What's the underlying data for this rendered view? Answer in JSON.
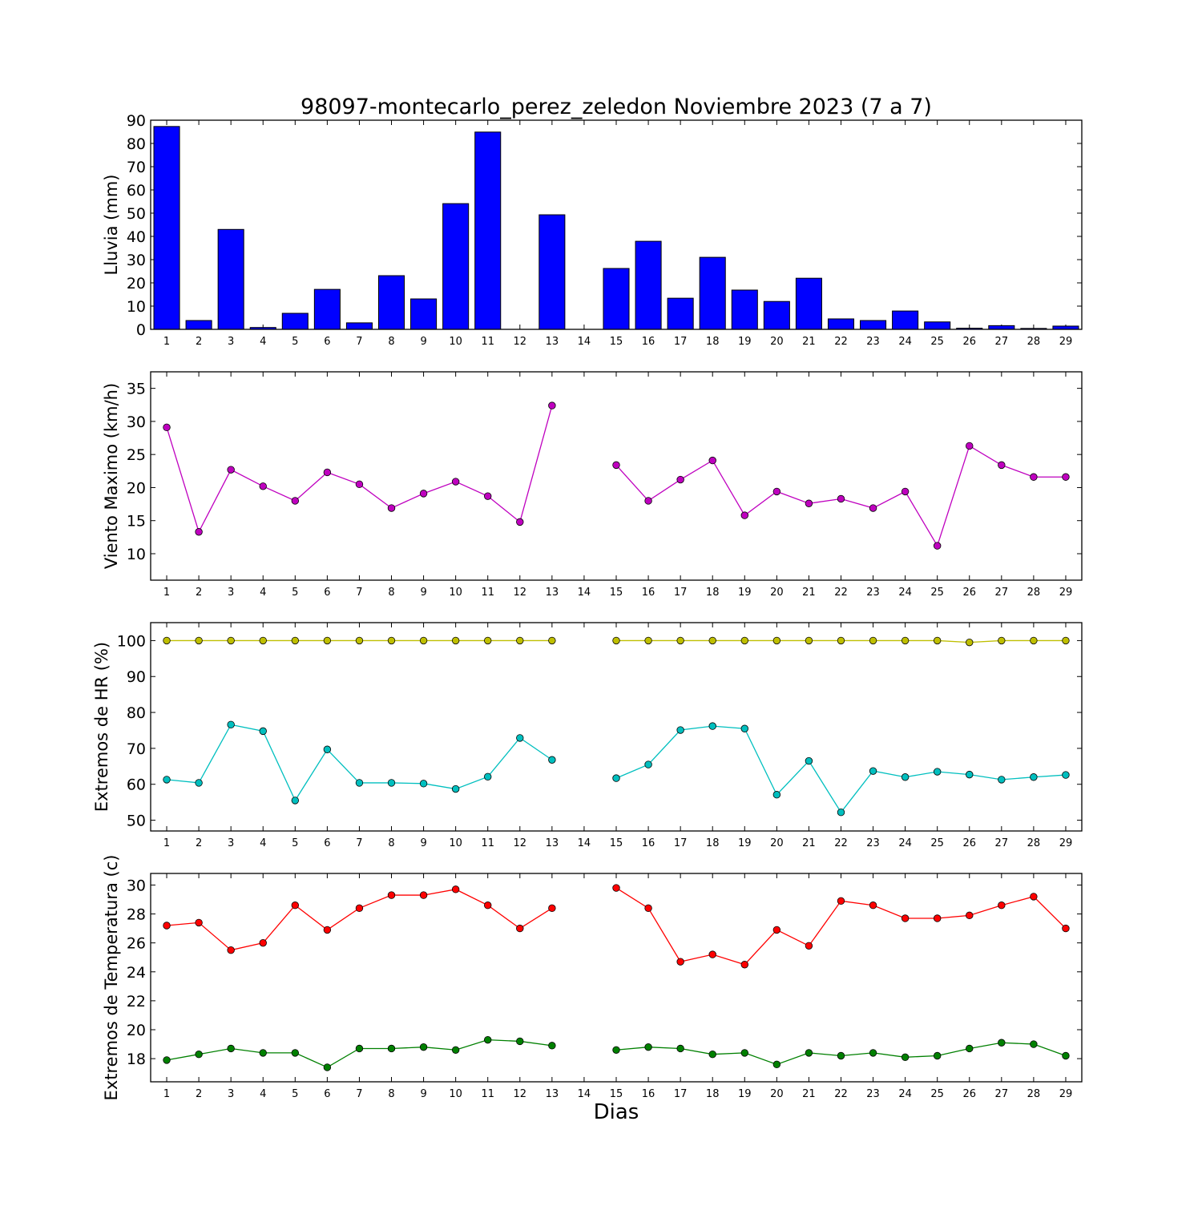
{
  "chart_data": {
    "title": "98097-montecarlo_perez_zeledon Noviembre 2023  (7 a 7)",
    "xlabel": "Dias",
    "days": [
      1,
      2,
      3,
      4,
      5,
      6,
      7,
      8,
      9,
      10,
      11,
      12,
      13,
      14,
      15,
      16,
      17,
      18,
      19,
      20,
      21,
      22,
      23,
      24,
      25,
      26,
      27,
      28,
      29
    ],
    "panels": [
      {
        "type": "bar",
        "ylabel": "Lluvia (mm)",
        "ylim": [
          0,
          90
        ],
        "yticks": [
          0,
          10,
          20,
          30,
          40,
          50,
          60,
          70,
          80,
          90
        ],
        "series": [
          {
            "color": "#0000ff",
            "values": [
              87.3,
              3.8,
              43.0,
              0.8,
              6.9,
              17.2,
              2.8,
              23.1,
              13.1,
              54.1,
              84.9,
              0.0,
              49.3,
              0.0,
              26.2,
              37.9,
              13.4,
              31.0,
              16.9,
              12.0,
              22.0,
              4.5,
              3.8,
              7.9,
              3.2,
              0.5,
              1.6,
              0.4,
              1.4
            ]
          }
        ]
      },
      {
        "type": "line",
        "ylabel": "Viento Maximo (km/h)",
        "ylim": [
          6,
          37.5
        ],
        "yticks": [
          10,
          15,
          20,
          25,
          30,
          35
        ],
        "series": [
          {
            "color": "#bf00bf",
            "values": [
              29.1,
              13.3,
              22.7,
              20.2,
              18.0,
              22.3,
              20.5,
              16.9,
              19.1,
              20.9,
              18.7,
              14.8,
              32.4,
              null,
              23.4,
              18.0,
              21.2,
              24.1,
              15.8,
              19.4,
              17.6,
              18.3,
              16.9,
              19.4,
              11.2,
              26.3,
              23.4,
              21.6,
              21.6
            ]
          }
        ]
      },
      {
        "type": "line",
        "ylabel": "Extremos de HR (%)",
        "ylim": [
          47,
          105
        ],
        "yticks": [
          50,
          60,
          70,
          80,
          90,
          100
        ],
        "series": [
          {
            "color": "#bfbf00",
            "values": [
              100,
              100,
              100,
              100,
              100,
              100,
              100,
              100,
              100,
              100,
              100,
              100,
              100,
              null,
              100,
              100,
              100,
              100,
              100,
              100,
              100,
              100,
              100,
              100,
              100,
              99.5,
              100,
              100,
              100
            ]
          },
          {
            "color": "#00bfbf",
            "values": [
              61.3,
              60.4,
              76.6,
              74.8,
              55.5,
              69.7,
              60.4,
              60.4,
              60.2,
              58.7,
              62.1,
              72.9,
              66.8,
              null,
              61.7,
              65.5,
              75.1,
              76.2,
              75.5,
              57.1,
              66.5,
              52.2,
              63.7,
              62.0,
              63.5,
              62.7,
              61.3,
              62.0,
              62.6
            ]
          }
        ]
      },
      {
        "type": "line",
        "ylabel": "Extremos de Temperatura (c)",
        "ylim": [
          16.4,
          30.8
        ],
        "yticks": [
          18,
          20,
          22,
          24,
          26,
          28,
          30
        ],
        "series": [
          {
            "color": "#ff0000",
            "values": [
              27.2,
              27.4,
              25.5,
              26.0,
              28.6,
              26.9,
              28.4,
              29.3,
              29.3,
              29.7,
              28.6,
              27.0,
              28.4,
              null,
              29.8,
              28.4,
              24.7,
              25.2,
              24.5,
              26.9,
              25.8,
              28.9,
              28.6,
              27.7,
              27.7,
              27.9,
              28.6,
              29.2,
              27.0
            ]
          },
          {
            "color": "#008000",
            "values": [
              17.9,
              18.3,
              18.7,
              18.4,
              18.4,
              17.4,
              18.7,
              18.7,
              18.8,
              18.6,
              19.3,
              19.2,
              18.9,
              null,
              18.6,
              18.8,
              18.7,
              18.3,
              18.4,
              17.6,
              18.4,
              18.2,
              18.4,
              18.1,
              18.2,
              18.7,
              19.1,
              19.0,
              18.2
            ]
          }
        ]
      }
    ]
  }
}
